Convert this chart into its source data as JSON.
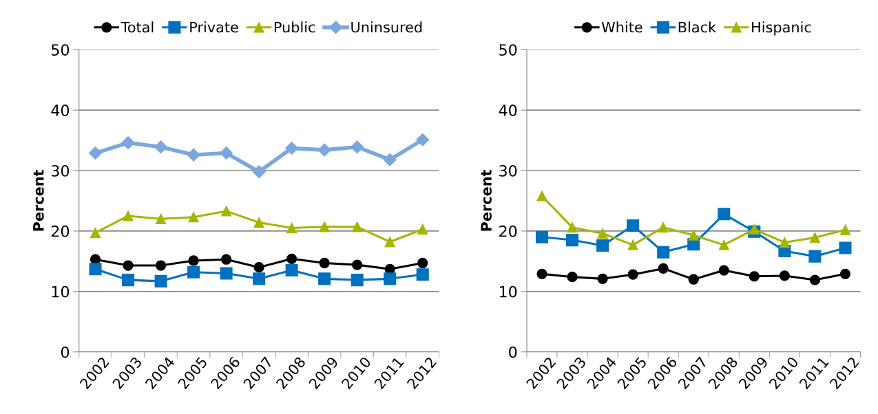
{
  "chart_data": [
    {
      "type": "line",
      "ylabel": "Percent",
      "categories": [
        "2002",
        "2003",
        "2004",
        "2005",
        "2006",
        "2007",
        "2008",
        "2009",
        "2010",
        "2011",
        "2012"
      ],
      "ylim": [
        0,
        50
      ],
      "yticks": [
        0,
        10,
        20,
        30,
        40,
        50
      ],
      "grid": "y",
      "legend": "top",
      "series": [
        {
          "name": "Total",
          "color": "#000000",
          "marker": "circle",
          "values": [
            15.3,
            14.3,
            14.3,
            15.1,
            15.3,
            14.0,
            15.4,
            14.7,
            14.4,
            13.7,
            14.7
          ]
        },
        {
          "name": "Private",
          "color": "#0070c0",
          "marker": "square",
          "values": [
            13.7,
            11.9,
            11.7,
            13.2,
            13.0,
            12.1,
            13.5,
            12.1,
            11.9,
            12.1,
            12.8
          ]
        },
        {
          "name": "Public",
          "color": "#a5b500",
          "marker": "triangle",
          "values": [
            19.7,
            22.5,
            22.0,
            22.3,
            23.3,
            21.4,
            20.5,
            20.7,
            20.7,
            18.2,
            20.3
          ]
        },
        {
          "name": "Uninsured",
          "color": "#7ba7de",
          "marker": "diamond",
          "values": [
            32.9,
            34.6,
            33.9,
            32.6,
            32.9,
            29.8,
            33.7,
            33.4,
            33.9,
            31.8,
            35.1
          ]
        }
      ]
    },
    {
      "type": "line",
      "ylabel": "Percent",
      "categories": [
        "2002",
        "2003",
        "2004",
        "2005",
        "2006",
        "2007",
        "2008",
        "2009",
        "2010",
        "2011",
        "2012"
      ],
      "ylim": [
        0,
        50
      ],
      "yticks": [
        0,
        10,
        20,
        30,
        40,
        50
      ],
      "grid": "y",
      "legend": "top",
      "series": [
        {
          "name": "White",
          "color": "#000000",
          "marker": "circle",
          "values": [
            12.9,
            12.4,
            12.1,
            12.8,
            13.8,
            12.0,
            13.5,
            12.5,
            12.6,
            11.9,
            12.9
          ]
        },
        {
          "name": "Black",
          "color": "#0070c0",
          "marker": "square",
          "values": [
            19.0,
            18.5,
            17.6,
            20.9,
            16.5,
            17.8,
            22.8,
            19.9,
            16.7,
            15.8,
            17.2
          ]
        },
        {
          "name": "Hispanic",
          "color": "#a5b500",
          "marker": "triangle",
          "values": [
            25.8,
            20.6,
            19.6,
            17.7,
            20.6,
            19.3,
            17.7,
            20.3,
            18.1,
            18.9,
            20.2
          ]
        }
      ]
    }
  ]
}
